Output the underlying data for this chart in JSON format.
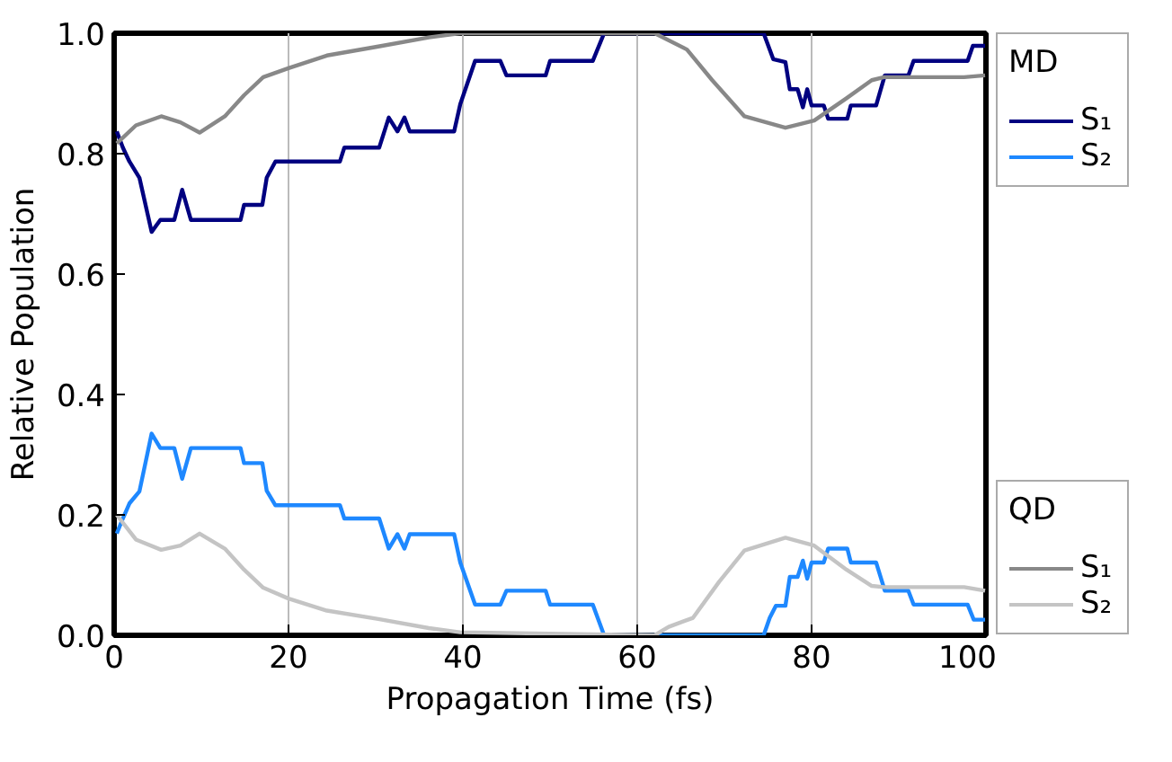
{
  "chart_data": {
    "type": "line",
    "xlabel": "Propagation Time (fs)",
    "ylabel": "Relative Population",
    "xlim": [
      0,
      100
    ],
    "ylim": [
      0,
      1
    ],
    "xticks": [
      0,
      20,
      40,
      60,
      80,
      100
    ],
    "yticks": [
      {
        "value": 0,
        "label": "0.0"
      },
      {
        "value": 0.2,
        "label": "0.2"
      },
      {
        "value": 0.4,
        "label": "0.4"
      },
      {
        "value": 0.6,
        "label": "0.6"
      },
      {
        "value": 0.8,
        "label": "0.8"
      },
      {
        "value": 1,
        "label": "1.0"
      }
    ],
    "grid": "x",
    "legend": "right",
    "legend_title": [
      "MD",
      "QD"
    ],
    "line_style": "solid",
    "marker": "none",
    "series": [
      {
        "name": "S₁",
        "color": "#000080",
        "x": [
          0.3,
          1,
          1.75,
          2.9,
          4.3,
          5.3,
          6.9,
          7.8,
          8.8,
          14.5,
          14.9,
          17,
          17.5,
          18.5,
          25.9,
          26.4,
          30.4,
          31.5,
          32.5,
          33.3,
          33.9,
          39,
          39.7,
          41.4,
          44.3,
          45,
          49.5,
          50,
          54.9,
          56.2,
          74.5,
          75.6,
          77,
          77.5,
          78.4,
          79,
          79.5,
          80,
          81.4,
          81.9,
          84.1,
          84.5,
          87.4,
          88.4,
          91.1,
          91.7,
          97.9,
          98.5,
          99.9
        ],
        "values": [
          0.837,
          0.81,
          0.787,
          0.76,
          0.67,
          0.69,
          0.69,
          0.74,
          0.69,
          0.69,
          0.715,
          0.715,
          0.76,
          0.787,
          0.787,
          0.81,
          0.81,
          0.86,
          0.837,
          0.86,
          0.837,
          0.837,
          0.882,
          0.954,
          0.954,
          0.93,
          0.93,
          0.954,
          0.954,
          1.0,
          1.0,
          0.957,
          0.952,
          0.907,
          0.907,
          0.877,
          0.907,
          0.88,
          0.88,
          0.858,
          0.858,
          0.88,
          0.88,
          0.93,
          0.93,
          0.954,
          0.954,
          0.979,
          0.979
        ]
      },
      {
        "name": "S₂",
        "color": "#1e88ff",
        "x": [
          0.3,
          1,
          1.75,
          2.9,
          4.3,
          5.3,
          6.9,
          7.8,
          8.8,
          14.5,
          14.9,
          17,
          17.5,
          18.5,
          25.9,
          26.4,
          30.4,
          31.5,
          32.5,
          33.3,
          33.9,
          39,
          39.7,
          41.4,
          44.3,
          45,
          49.5,
          50,
          54.9,
          56.2,
          74.5,
          75.2,
          75.9,
          77,
          77.5,
          78.4,
          79,
          79.5,
          80,
          81.4,
          81.9,
          84.1,
          84.5,
          87.4,
          88.4,
          91.1,
          91.7,
          97.9,
          98.6,
          99.9
        ],
        "values": [
          0.169,
          0.194,
          0.219,
          0.239,
          0.335,
          0.311,
          0.311,
          0.26,
          0.311,
          0.311,
          0.286,
          0.286,
          0.24,
          0.216,
          0.216,
          0.194,
          0.194,
          0.144,
          0.168,
          0.144,
          0.168,
          0.168,
          0.121,
          0.051,
          0.051,
          0.074,
          0.074,
          0.051,
          0.051,
          0.0,
          0.0,
          0.029,
          0.049,
          0.049,
          0.097,
          0.097,
          0.124,
          0.094,
          0.121,
          0.121,
          0.144,
          0.144,
          0.121,
          0.121,
          0.074,
          0.074,
          0.051,
          0.051,
          0.026,
          0.026
        ]
      },
      {
        "name": "S₁",
        "color": "#888888",
        "x": [
          0.3,
          2.5,
          5.4,
          7.6,
          9.8,
          12.7,
          14.9,
          17.1,
          20,
          24.4,
          30.3,
          36.1,
          39.7,
          62,
          65.7,
          68.6,
          72.3,
          77,
          80.3,
          84,
          86.9,
          88.3,
          97.5,
          99.9
        ],
        "values": [
          0.817,
          0.847,
          0.862,
          0.852,
          0.835,
          0.862,
          0.897,
          0.927,
          0.942,
          0.963,
          0.978,
          0.993,
          1.0,
          1.0,
          0.973,
          0.922,
          0.862,
          0.843,
          0.855,
          0.892,
          0.922,
          0.927,
          0.927,
          0.93
        ]
      },
      {
        "name": "S₂",
        "color": "#c4c4c4",
        "x": [
          0.3,
          2.5,
          5.4,
          7.6,
          9.8,
          12.7,
          14.9,
          17.1,
          20,
          24.4,
          30.3,
          36.1,
          39.7,
          62,
          63.6,
          66.4,
          69.4,
          72.3,
          77,
          80.3,
          84,
          86.9,
          88.3,
          97.5,
          99.9
        ],
        "values": [
          0.2,
          0.159,
          0.142,
          0.149,
          0.169,
          0.144,
          0.109,
          0.079,
          0.061,
          0.041,
          0.027,
          0.012,
          0.005,
          0.0,
          0.014,
          0.029,
          0.089,
          0.141,
          0.162,
          0.149,
          0.109,
          0.082,
          0.08,
          0.08,
          0.074
        ]
      }
    ]
  }
}
